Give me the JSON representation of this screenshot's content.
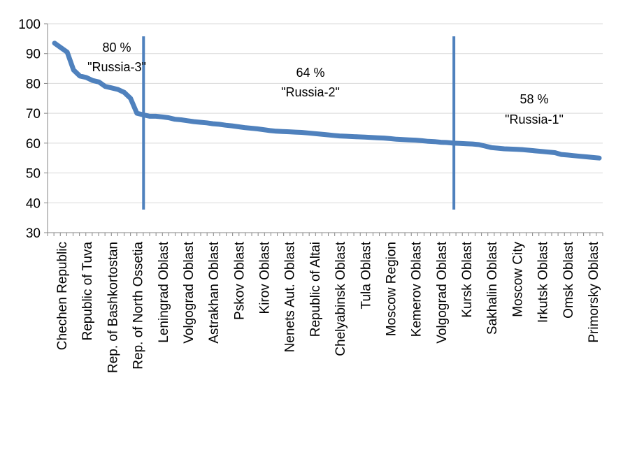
{
  "chart_data": {
    "type": "line",
    "title": "",
    "xlabel": "",
    "ylabel": "",
    "ylim": [
      30,
      100
    ],
    "yticks": [
      30,
      40,
      50,
      60,
      70,
      80,
      90,
      100
    ],
    "grid": true,
    "legend": "none",
    "line_color": "#4f81bd",
    "tick_labels": [
      "Chechen Republic",
      "Republic of Tuva",
      "Rep. of Bashkortostan",
      "Rep. of North Ossetia",
      "Leningrad Oblast",
      "Volgograd Oblast",
      "Astrakhan Oblast",
      "Pskov Oblast",
      "Kirov Oblast",
      "Nenets Aut. Oblast",
      "Republic of Altai",
      "Chelyabinsk Oblast",
      "Tula Oblast",
      "Moscow Region",
      "Kemerov Oblast",
      "Volgograd Oblast",
      "Kursk Oblast",
      "Sakhalin Oblast",
      "Moscow City",
      "Irkutsk Oblast",
      "Omsk Oblast",
      "Primorsky Oblast"
    ],
    "values": [
      93.5,
      92.0,
      90.5,
      84.5,
      82.5,
      82.0,
      81.0,
      80.5,
      79.0,
      78.5,
      78.0,
      77.0,
      75.0,
      70.0,
      69.5,
      69.0,
      69.0,
      68.8,
      68.5,
      68.0,
      67.8,
      67.5,
      67.2,
      67.0,
      66.8,
      66.5,
      66.3,
      66.0,
      65.8,
      65.5,
      65.2,
      65.0,
      64.8,
      64.5,
      64.2,
      64.0,
      63.9,
      63.8,
      63.7,
      63.6,
      63.4,
      63.2,
      63.0,
      62.8,
      62.6,
      62.4,
      62.3,
      62.2,
      62.1,
      62.0,
      61.9,
      61.8,
      61.7,
      61.5,
      61.3,
      61.2,
      61.1,
      61.0,
      60.8,
      60.6,
      60.5,
      60.3,
      60.2,
      60.0,
      59.9,
      59.8,
      59.7,
      59.5,
      59.0,
      58.5,
      58.3,
      58.1,
      58.0,
      57.9,
      57.8,
      57.6,
      57.4,
      57.2,
      57.0,
      56.8,
      56.2,
      56.0,
      55.8,
      55.6,
      55.4,
      55.2,
      55.0
    ],
    "annotations": [
      {
        "percent": "80 %",
        "label": "\"Russia-3\""
      },
      {
        "percent": "64 %",
        "label": "\"Russia-2\""
      },
      {
        "percent": "58 %",
        "label": "\"Russia-1\""
      }
    ],
    "dividers_after_index": [
      13,
      62
    ]
  }
}
